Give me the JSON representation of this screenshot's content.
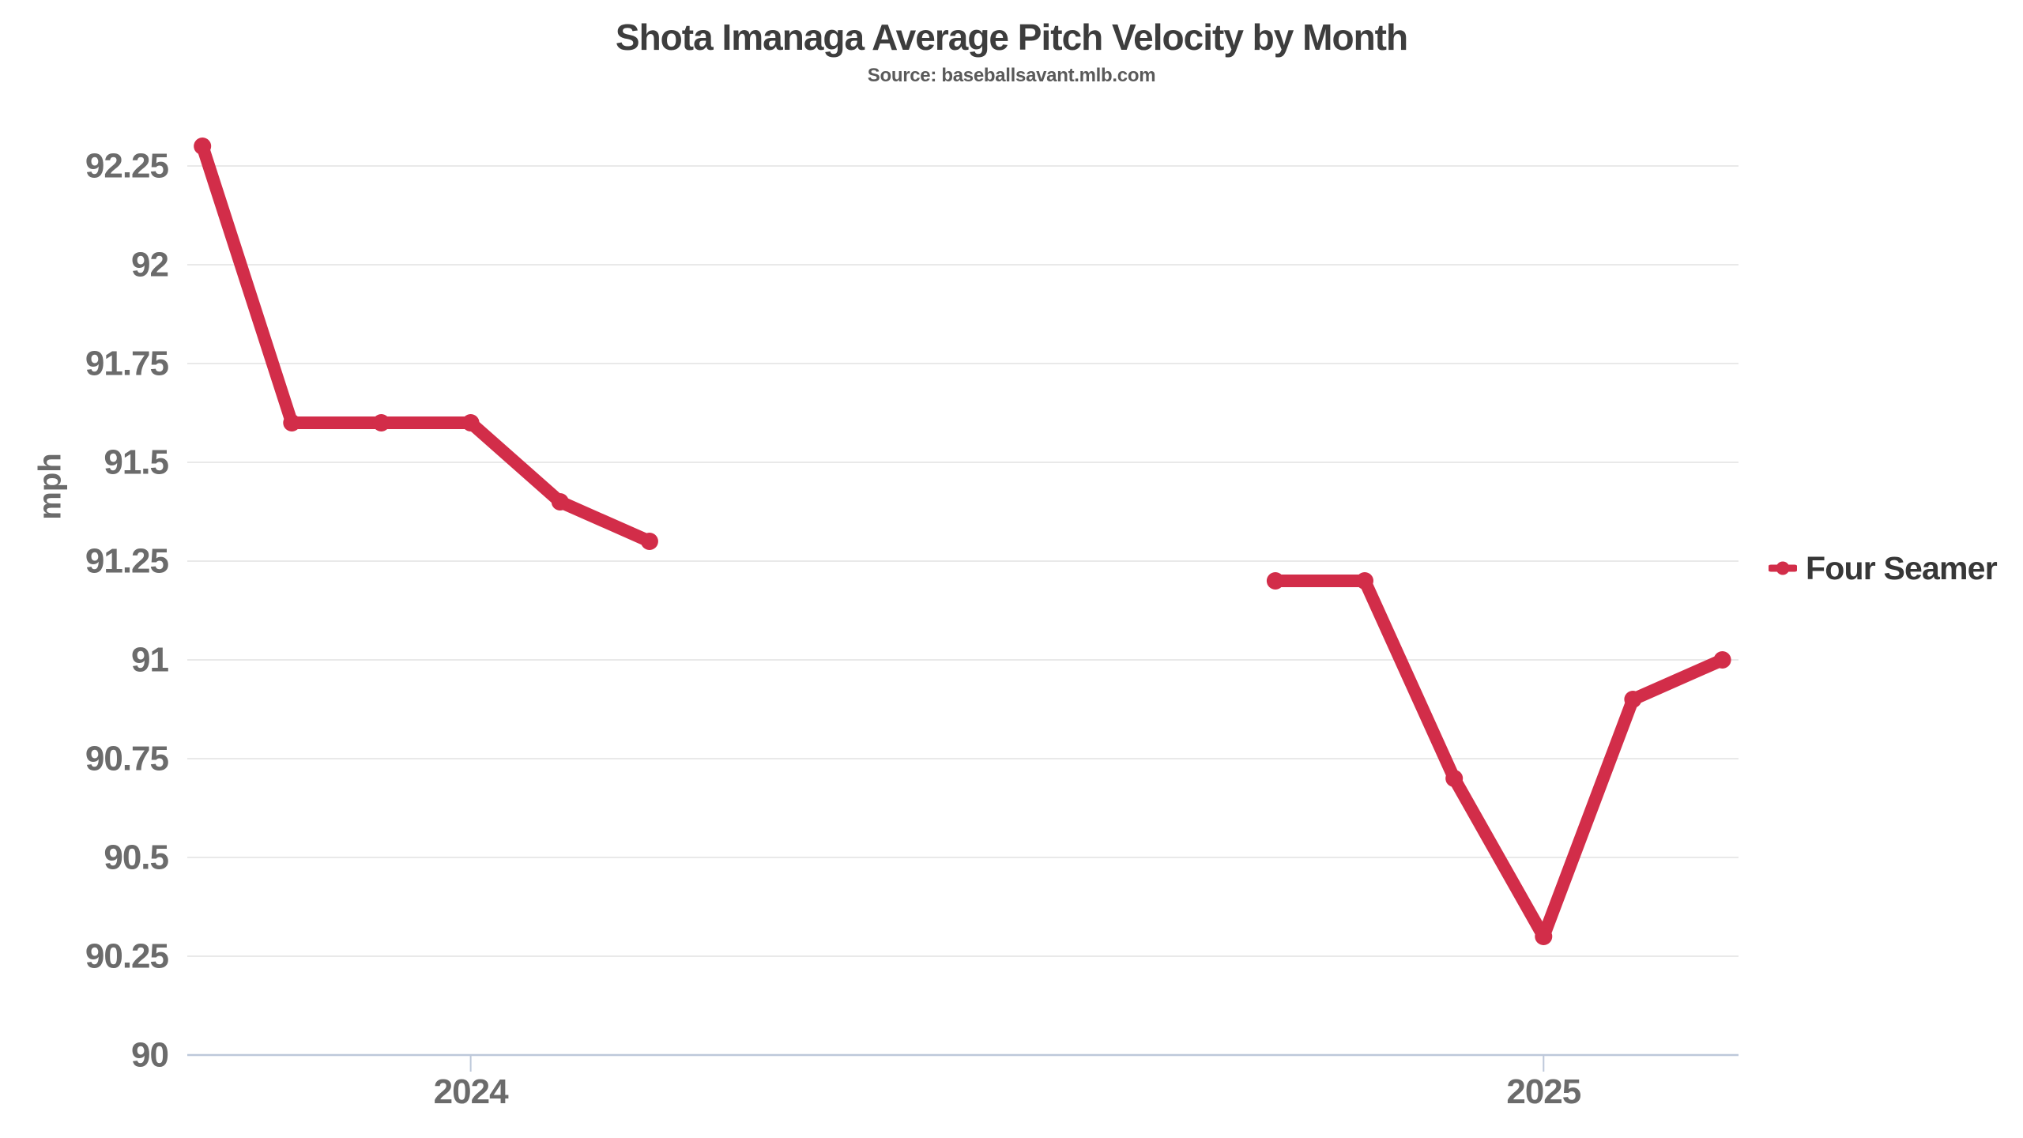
{
  "chart_data": {
    "type": "line",
    "title": "Shota Imanaga Average Pitch Velocity by Month",
    "subtitle": "Source: baseballsavant.mlb.com",
    "xlabel": "",
    "ylabel": "mph",
    "grid": true,
    "x_axis": {
      "kind": "time-month",
      "visible_range": [
        "2024-03",
        "2025-10"
      ],
      "ticks": [
        {
          "label": "2024",
          "month": "2024-07"
        },
        {
          "label": "2025",
          "month": "2025-07"
        }
      ]
    },
    "y_axis": {
      "ylim": [
        90,
        92.37
      ],
      "ticks": [
        {
          "value": 92.25,
          "label": "92.25"
        },
        {
          "value": 92,
          "label": "92"
        },
        {
          "value": 91.75,
          "label": "91.75"
        },
        {
          "value": 91.5,
          "label": "91.5"
        },
        {
          "value": 91.25,
          "label": "91.25"
        },
        {
          "value": 91,
          "label": "91"
        },
        {
          "value": 90.75,
          "label": "90.75"
        },
        {
          "value": 90.5,
          "label": "90.5"
        },
        {
          "value": 90.25,
          "label": "90.25"
        },
        {
          "value": 90,
          "label": "90"
        }
      ]
    },
    "legend": {
      "position": "right",
      "entries": [
        {
          "label": "Four Seamer",
          "color": "#d22d49"
        }
      ]
    },
    "series": [
      {
        "name": "Four Seamer",
        "color": "#d22d49",
        "points": [
          {
            "x": "2024-04",
            "y": 92.3
          },
          {
            "x": "2024-05",
            "y": 91.6
          },
          {
            "x": "2024-06",
            "y": 91.6
          },
          {
            "x": "2024-07",
            "y": 91.6
          },
          {
            "x": "2024-08",
            "y": 91.4
          },
          {
            "x": "2024-09",
            "y": 91.3
          },
          {
            "x": "2025-04",
            "y": 91.2
          },
          {
            "x": "2025-05",
            "y": 91.2
          },
          {
            "x": "2025-06",
            "y": 90.7
          },
          {
            "x": "2025-07",
            "y": 90.3
          },
          {
            "x": "2025-08",
            "y": 90.9
          },
          {
            "x": "2025-09",
            "y": 91.0
          }
        ]
      }
    ],
    "colors": {
      "background": "#ffffff",
      "grid": "#e9e9e9",
      "axis": "#bdc8da",
      "tick_text": "#6b6b6b",
      "title_text": "#3d3d3d",
      "subtitle_text": "#5a5a5a",
      "legend_text": "#373737"
    }
  }
}
